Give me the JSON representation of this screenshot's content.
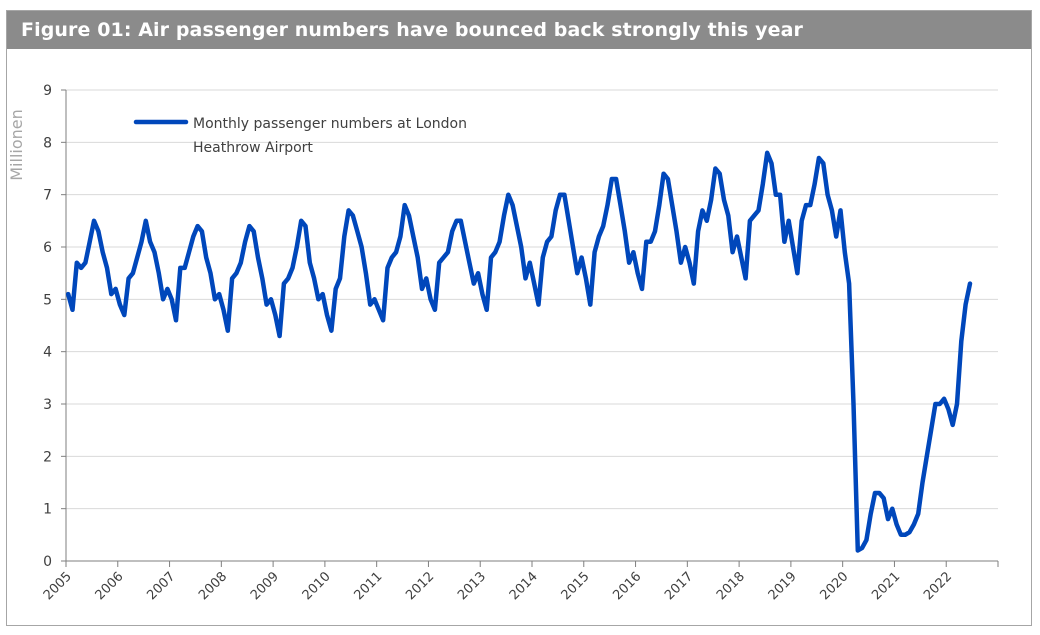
{
  "figure": {
    "title": "Figure 01: Air passenger numbers have bounced back strongly this year"
  },
  "chart_data": {
    "type": "line",
    "title": "Figure 01: Air passenger numbers have bounced back strongly this year",
    "xlabel": "",
    "ylabel": "Millionen",
    "ylim": [
      0,
      9
    ],
    "yticks": [
      "0",
      "1",
      "2",
      "3",
      "4",
      "5",
      "6",
      "7",
      "8",
      "9"
    ],
    "xticks": [
      "2005",
      "2006",
      "2007",
      "2008",
      "2009",
      "2010",
      "2011",
      "2012",
      "2013",
      "2014",
      "2015",
      "2016",
      "2017",
      "2018",
      "2019",
      "2020",
      "2021",
      "2022"
    ],
    "grid": true,
    "legend": "top-left",
    "series": [
      {
        "name": "Monthly passenger numbers at London Heathrow Airport",
        "color": "#0047bb",
        "start": "2005-01",
        "values": [
          5.1,
          4.8,
          5.7,
          5.6,
          5.7,
          6.1,
          6.5,
          6.3,
          5.9,
          5.6,
          5.1,
          5.2,
          4.9,
          4.7,
          5.4,
          5.5,
          5.8,
          6.1,
          6.5,
          6.1,
          5.9,
          5.5,
          5.0,
          5.2,
          5.0,
          4.6,
          5.6,
          5.6,
          5.9,
          6.2,
          6.4,
          6.3,
          5.8,
          5.5,
          5.0,
          5.1,
          4.8,
          4.4,
          5.4,
          5.5,
          5.7,
          6.1,
          6.4,
          6.3,
          5.8,
          5.4,
          4.9,
          5.0,
          4.7,
          4.3,
          5.3,
          5.4,
          5.6,
          6.0,
          6.5,
          6.4,
          5.7,
          5.4,
          5.0,
          5.1,
          4.7,
          4.4,
          5.2,
          5.4,
          6.2,
          6.7,
          6.6,
          6.3,
          6.0,
          5.5,
          4.9,
          5.0,
          4.8,
          4.6,
          5.6,
          5.8,
          5.9,
          6.2,
          6.8,
          6.6,
          6.2,
          5.8,
          5.2,
          5.4,
          5.0,
          4.8,
          5.7,
          5.8,
          5.9,
          6.3,
          6.5,
          6.5,
          6.1,
          5.7,
          5.3,
          5.5,
          5.1,
          4.8,
          5.8,
          5.9,
          6.1,
          6.6,
          7.0,
          6.8,
          6.4,
          6.0,
          5.4,
          5.7,
          5.3,
          4.9,
          5.8,
          6.1,
          6.2,
          6.7,
          7.0,
          7.0,
          6.5,
          6.0,
          5.5,
          5.8,
          5.4,
          4.9,
          5.9,
          6.2,
          6.4,
          6.8,
          7.3,
          7.3,
          6.8,
          6.3,
          5.7,
          5.9,
          5.5,
          5.2,
          6.1,
          6.1,
          6.3,
          6.8,
          7.4,
          7.3,
          6.8,
          6.3,
          5.7,
          6.0,
          5.7,
          5.3,
          6.3,
          6.7,
          6.5,
          6.9,
          7.5,
          7.4,
          6.9,
          6.6,
          5.9,
          6.2,
          5.8,
          5.4,
          6.5,
          6.6,
          6.7,
          7.2,
          7.8,
          7.6,
          7.0,
          7.0,
          6.1,
          6.5,
          6.0,
          5.5,
          6.5,
          6.8,
          6.8,
          7.2,
          7.7,
          7.6,
          7.0,
          6.7,
          6.2,
          6.7,
          5.9,
          5.3,
          3.0,
          0.2,
          0.25,
          0.4,
          0.9,
          1.3,
          1.3,
          1.2,
          0.8,
          1.0,
          0.7,
          0.5,
          0.5,
          0.55,
          0.7,
          0.9,
          1.5,
          2.0,
          2.5,
          3.0,
          3.0,
          3.1,
          2.9,
          2.6,
          3.0,
          4.2,
          4.9,
          5.3
        ]
      }
    ]
  }
}
